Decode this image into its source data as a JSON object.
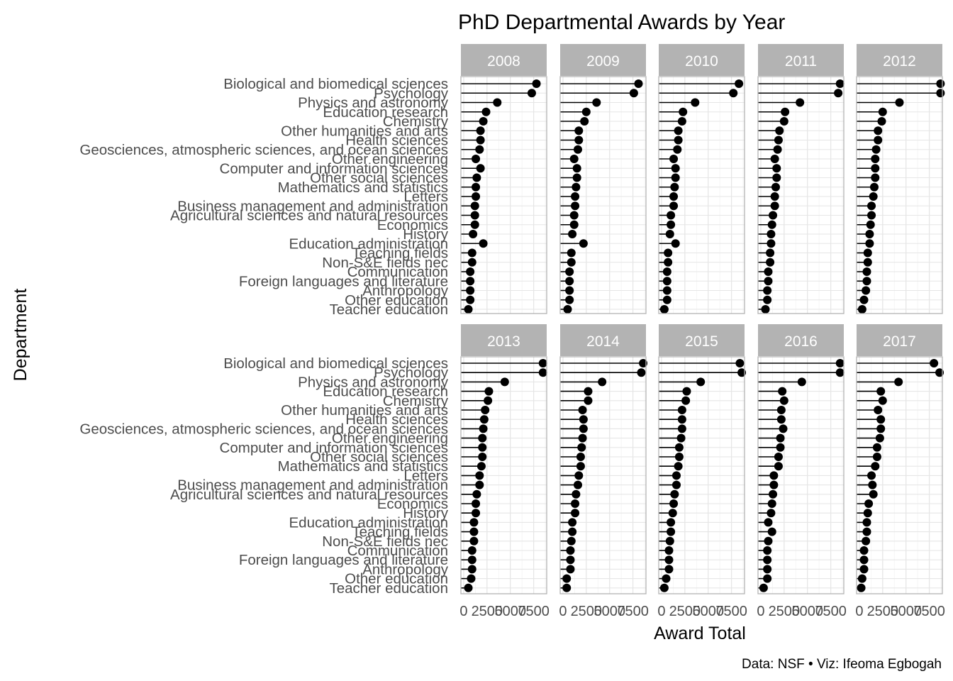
{
  "chart_data": {
    "type": "lollipop",
    "title": "PhD Departmental Awards by Year",
    "xlabel": "Award Total",
    "ylabel": "Department",
    "caption": "Data: NSF • Viz: Ifeoma Egbogah",
    "xlim": [
      -300,
      8900
    ],
    "x_ticks": [
      0,
      2500,
      5000,
      7500
    ],
    "x_tick_labels": [
      "0",
      "2500",
      "5000",
      "7500"
    ],
    "grid": true,
    "colors": {
      "strip": "#b3b3b3",
      "strip_text": "#ffffff",
      "panel_border": "#b3b3b3",
      "grid_major": "#e6e6e6",
      "grid_minor": "#f3f3f3",
      "point": "#000000",
      "axis_text": "#4d4d4d"
    },
    "categories": [
      "Biological and biomedical sciences",
      "Psychology",
      "Physics and astronomy",
      "Education research",
      "Chemistry",
      "Other humanities and arts",
      "Health sciences",
      "Geosciences, atmospheric sciences, and ocean sciences",
      "Other engineering",
      "Computer and information sciences",
      "Other social sciences",
      "Mathematics and statistics",
      "Letters",
      "Business management and administration",
      "Agricultural sciences and natural resources",
      "Economics",
      "History",
      "Education administration",
      "Teaching fields",
      "Non-S&E fields nec",
      "Communication",
      "Foreign languages and literature",
      "Anthropology",
      "Other education",
      "Teacher education"
    ],
    "series": [
      {
        "name": "2008",
        "values": [
          7800,
          7300,
          3600,
          2400,
          2100,
          1800,
          1800,
          1700,
          1300,
          1800,
          1400,
          1300,
          1300,
          1200,
          1200,
          1200,
          1000,
          2100,
          900,
          900,
          700,
          700,
          700,
          700,
          500
        ]
      },
      {
        "name": "2009",
        "values": [
          8100,
          7600,
          3600,
          2500,
          2300,
          1700,
          1700,
          1600,
          1200,
          1500,
          1500,
          1400,
          1300,
          1300,
          1200,
          1200,
          1000,
          2200,
          900,
          900,
          700,
          700,
          700,
          700,
          500
        ]
      },
      {
        "name": "2010",
        "values": [
          8300,
          7700,
          3600,
          2300,
          2200,
          1800,
          1800,
          1700,
          1300,
          1500,
          1500,
          1400,
          1300,
          1300,
          1000,
          1000,
          900,
          1500,
          700,
          700,
          600,
          600,
          600,
          600,
          300
        ]
      },
      {
        "name": "2011",
        "values": [
          8500,
          8300,
          4200,
          2600,
          2500,
          2000,
          1900,
          1800,
          1500,
          1700,
          1700,
          1600,
          1500,
          1500,
          1300,
          1200,
          1100,
          1100,
          1000,
          1000,
          800,
          800,
          700,
          700,
          500
        ]
      },
      {
        "name": "2012",
        "values": [
          8700,
          8700,
          4300,
          2500,
          2400,
          2000,
          2000,
          1800,
          1700,
          1700,
          1700,
          1600,
          1500,
          1300,
          1300,
          1200,
          1100,
          1100,
          900,
          900,
          800,
          800,
          700,
          500,
          300
        ]
      },
      {
        "name": "2013",
        "values": [
          8500,
          8500,
          4400,
          2700,
          2600,
          2300,
          2200,
          2100,
          2000,
          2000,
          2000,
          1900,
          1700,
          1700,
          1400,
          1300,
          1300,
          1100,
          1100,
          1100,
          900,
          900,
          900,
          800,
          500
        ]
      },
      {
        "name": "2014",
        "values": [
          8600,
          8400,
          4200,
          2700,
          2700,
          2100,
          2200,
          2200,
          2100,
          2000,
          1900,
          1900,
          1700,
          1600,
          1400,
          1300,
          1300,
          1000,
          1000,
          900,
          800,
          800,
          800,
          400,
          400
        ]
      },
      {
        "name": "2015",
        "values": [
          8400,
          8600,
          4200,
          2700,
          2600,
          2200,
          2200,
          2200,
          2100,
          1900,
          1900,
          1800,
          1600,
          1600,
          1400,
          1300,
          1200,
          1000,
          1000,
          900,
          800,
          800,
          800,
          500,
          300
        ]
      },
      {
        "name": "2016",
        "values": [
          8500,
          8500,
          4400,
          2300,
          2500,
          2200,
          2200,
          2400,
          2100,
          2100,
          1900,
          1900,
          1400,
          1400,
          1300,
          1200,
          1100,
          800,
          1200,
          800,
          700,
          700,
          700,
          700,
          300
        ]
      },
      {
        "name": "2017",
        "values": [
          8000,
          8600,
          4200,
          2300,
          2500,
          2000,
          2300,
          2300,
          2200,
          1900,
          1900,
          1700,
          1300,
          1400,
          1500,
          1000,
          900,
          800,
          800,
          700,
          500,
          500,
          500,
          300,
          200
        ]
      }
    ]
  }
}
